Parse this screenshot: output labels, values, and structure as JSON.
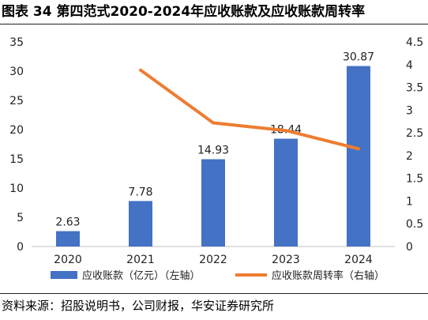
{
  "figure": {
    "title": "图表 34 第四范式2020-2024年应收账款及应收账款周转率",
    "source": "资料来源：招股说明书，公司财报，华安证券研究所"
  },
  "chart_data": {
    "type": "bar",
    "categories": [
      "2020",
      "2021",
      "2022",
      "2023",
      "2024"
    ],
    "series": [
      {
        "name": "应收账款（亿元）（左轴）",
        "type": "bar",
        "axis": "left",
        "values": [
          2.63,
          7.78,
          14.93,
          18.44,
          30.87
        ],
        "data_labels": [
          "2.63",
          "7.78",
          "14.93",
          "18.44",
          "30.87"
        ],
        "color": "#4472C4"
      },
      {
        "name": "应收账款周转率（右轴）",
        "type": "line",
        "axis": "right",
        "values": [
          null,
          3.88,
          2.72,
          2.55,
          2.15
        ],
        "color": "#ED7D31"
      }
    ],
    "y_left": {
      "ylim": [
        0,
        35
      ],
      "ticks": [
        "0",
        "5",
        "10",
        "15",
        "20",
        "25",
        "30",
        "35"
      ]
    },
    "y_right": {
      "ylim": [
        0,
        4.5
      ],
      "ticks": [
        "0",
        "0.5",
        "1",
        "1.5",
        "2",
        "2.5",
        "3",
        "3.5",
        "4",
        "4.5"
      ]
    },
    "grid": false,
    "legend_position": "bottom"
  }
}
